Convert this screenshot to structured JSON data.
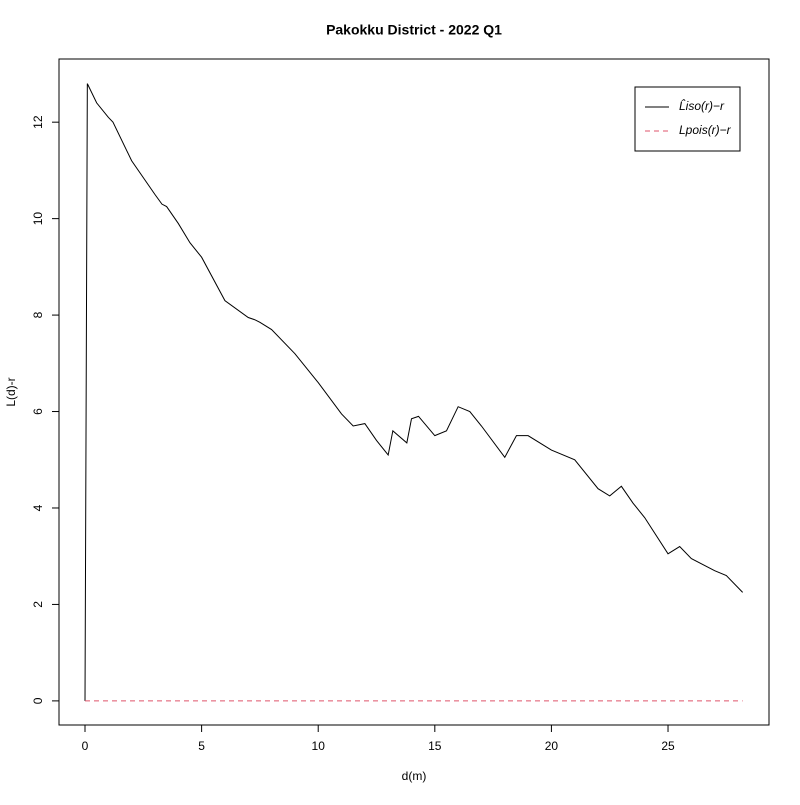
{
  "chart_data": {
    "type": "line",
    "title": "Pakokku District - 2022 Q1",
    "x_label": "d(m)",
    "y_label": "L(d)-r",
    "xlim": [
      -1.115,
      29.33
    ],
    "ylim": [
      -0.5,
      13.31
    ],
    "xticks": [
      0,
      5,
      10,
      15,
      20,
      25
    ],
    "yticks": [
      0,
      2,
      4,
      6,
      8,
      10,
      12
    ],
    "legend": "topright",
    "series": [
      {
        "name": "L̂iso(r)−r",
        "color": "#000000",
        "dashed": false,
        "x": [
          0,
          0.05,
          0.1,
          0.5,
          1.0,
          1.2,
          2,
          3,
          3.3,
          3.5,
          4,
          4.5,
          5,
          6,
          7,
          7.3,
          7.5,
          8,
          9,
          10,
          11,
          11.5,
          12,
          12.5,
          13,
          13.2,
          13.8,
          14,
          14.3,
          15,
          15.5,
          16,
          16.5,
          17,
          18,
          18.5,
          19,
          20,
          21,
          22,
          22.5,
          23,
          23.5,
          24,
          25,
          25.5,
          26,
          27,
          27.5,
          28.2
        ],
        "values": [
          0,
          6.4,
          12.8,
          12.4,
          12.1,
          12.0,
          11.2,
          10.5,
          10.3,
          10.25,
          9.9,
          9.5,
          9.2,
          8.3,
          7.95,
          7.9,
          7.85,
          7.7,
          7.2,
          6.6,
          5.95,
          5.7,
          5.75,
          5.4,
          5.1,
          5.6,
          5.35,
          5.85,
          5.9,
          5.5,
          5.6,
          6.1,
          6.0,
          5.7,
          5.05,
          5.5,
          5.5,
          5.2,
          5.0,
          4.4,
          4.25,
          4.45,
          4.1,
          3.8,
          3.05,
          3.2,
          2.95,
          2.7,
          2.6,
          2.25
        ]
      },
      {
        "name": "Lpois(r)−r",
        "color": "#df536b",
        "dashed": true,
        "x": [
          0,
          28.2
        ],
        "values": [
          0,
          0
        ]
      }
    ]
  }
}
